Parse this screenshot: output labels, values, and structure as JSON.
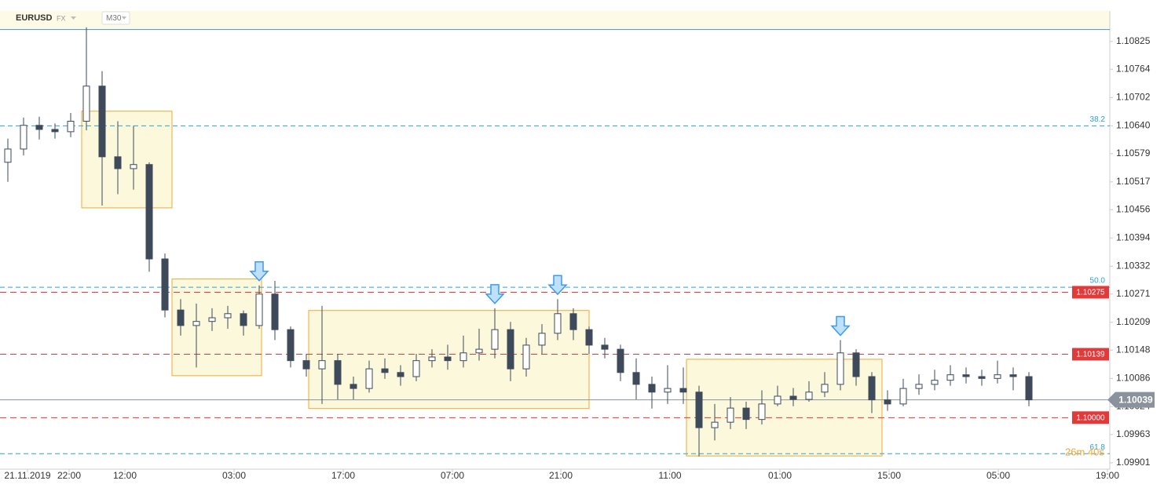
{
  "chart_data": {
    "type": "candlestick",
    "title": "EURUSD",
    "market": "FX",
    "interval": "M30",
    "countdown": "26m 40s",
    "up_color": "#ffffff",
    "down_color": "#3e4a5a",
    "wick_color": "#3e4a5a",
    "ylim": [
      1.09887,
      1.1089
    ],
    "xlim": [
      -0.5,
      70.15
    ],
    "yticks": [
      1.10825,
      1.10764,
      1.10702,
      {
        "value": 1.1064,
        "label": "1.10640"
      },
      1.10579,
      1.10517,
      1.10456,
      1.10394,
      1.10332,
      1.10271,
      1.10209,
      1.10148,
      1.10086,
      1.10024,
      1.09963,
      1.09901
    ],
    "xticks": [
      {
        "value": 1.25,
        "label": "21.11.2019"
      },
      {
        "value": 3.9,
        "label": "22:00"
      },
      {
        "value": 7.45,
        "label": "12:00"
      },
      {
        "value": 14.4,
        "label": "03:00"
      },
      {
        "value": 21.35,
        "label": "17:00"
      },
      {
        "value": 28.3,
        "label": "07:00"
      },
      {
        "value": 35.2,
        "label": "21:00"
      },
      {
        "value": 42.15,
        "label": "11:00"
      },
      {
        "value": 49.15,
        "label": "01:00"
      },
      {
        "value": 56.1,
        "label": "15:00"
      },
      {
        "value": 63.05,
        "label": "05:00"
      },
      {
        "value": 70.0,
        "label": "19:00"
      }
    ],
    "open": [
      1.1056,
      1.10589,
      1.10641,
      1.10632,
      1.10627,
      1.1065,
      1.10727,
      1.10572,
      1.10546,
      1.10555,
      1.10348,
      1.10236,
      1.10202,
      1.10211,
      1.10219,
      1.10228,
      1.10202,
      1.10271,
      1.10193,
      1.10125,
      1.10107,
      1.10125,
      1.10073,
      1.10064,
      1.10107,
      1.10099,
      1.1009,
      1.10125,
      1.10133,
      1.10125,
      1.10142,
      1.1015,
      1.10193,
      1.10107,
      1.10159,
      1.10185,
      1.10228,
      1.10193,
      1.10159,
      1.1015,
      1.10099,
      1.10073,
      1.10056,
      1.10064,
      1.10056,
      1.09978,
      1.0999,
      1.10021,
      1.09996,
      1.1003,
      1.10047,
      1.1004,
      1.10056,
      1.10073,
      1.10142,
      1.1009,
      1.10039,
      1.1003,
      1.10064,
      1.10073,
      1.10082,
      1.10094,
      1.1009,
      1.10086,
      1.10094,
      1.1009
    ],
    "high": [
      1.10612,
      1.10658,
      1.1066,
      1.10645,
      1.10668,
      1.10856,
      1.1076,
      1.1065,
      1.1064,
      1.1056,
      1.1036,
      1.1026,
      1.1025,
      1.1024,
      1.10245,
      1.10235,
      1.1029,
      1.103,
      1.102,
      1.1014,
      1.10245,
      1.1014,
      1.1009,
      1.10125,
      1.1013,
      1.10115,
      1.1014,
      1.1015,
      1.1016,
      1.1018,
      1.10195,
      1.1024,
      1.1021,
      1.10175,
      1.10205,
      1.1026,
      1.1024,
      1.102,
      1.10175,
      1.1016,
      1.1013,
      1.1009,
      1.10115,
      1.1011,
      1.1007,
      1.1003,
      1.10045,
      1.10035,
      1.1006,
      1.1007,
      1.10065,
      1.1008,
      1.101,
      1.1017,
      1.1015,
      1.101,
      1.1006,
      1.10085,
      1.10095,
      1.10105,
      1.10115,
      1.1011,
      1.10105,
      1.10125,
      1.1011,
      1.101
    ],
    "low": [
      1.10517,
      1.10575,
      1.1061,
      1.10612,
      1.10615,
      1.1063,
      1.10465,
      1.1049,
      1.105,
      1.1032,
      1.1022,
      1.1018,
      1.1011,
      1.1019,
      1.10195,
      1.1018,
      1.10195,
      1.1017,
      1.1011,
      1.1009,
      1.1003,
      1.1004,
      1.1004,
      1.10055,
      1.10085,
      1.1007,
      1.1008,
      1.1011,
      1.10105,
      1.1011,
      1.10125,
      1.1013,
      1.1008,
      1.1009,
      1.1014,
      1.1017,
      1.1017,
      1.1014,
      1.1013,
      1.1008,
      1.1004,
      1.1002,
      1.1003,
      1.1003,
      1.09915,
      1.0995,
      1.09975,
      1.09975,
      1.09985,
      1.10025,
      1.10025,
      1.10035,
      1.10045,
      1.1006,
      1.1007,
      1.1001,
      1.10015,
      1.10025,
      1.1005,
      1.1006,
      1.1007,
      1.10075,
      1.1007,
      1.10075,
      1.1006,
      1.10025
    ],
    "close": [
      1.10589,
      1.10641,
      1.10632,
      1.10627,
      1.1065,
      1.10727,
      1.10572,
      1.10546,
      1.10555,
      1.10348,
      1.10236,
      1.10202,
      1.10211,
      1.10219,
      1.10228,
      1.10202,
      1.10271,
      1.10193,
      1.10125,
      1.10107,
      1.10125,
      1.10073,
      1.10064,
      1.10107,
      1.10099,
      1.1009,
      1.10125,
      1.10133,
      1.10125,
      1.10142,
      1.1015,
      1.10193,
      1.10107,
      1.10159,
      1.10185,
      1.10228,
      1.10193,
      1.10159,
      1.1015,
      1.10099,
      1.10073,
      1.10056,
      1.10064,
      1.10056,
      1.09978,
      1.0999,
      1.10021,
      1.09996,
      1.1003,
      1.10047,
      1.1004,
      1.10056,
      1.10073,
      1.10142,
      1.1009,
      1.10039,
      1.1003,
      1.10064,
      1.10073,
      1.10082,
      1.10094,
      1.1009,
      1.10086,
      1.10094,
      1.1009,
      1.10039
    ],
    "zones": [
      {
        "from": 4.7,
        "to": 10.45,
        "high": 1.10672,
        "low": 1.1046
      },
      {
        "from": 10.45,
        "to": 16.15,
        "high": 1.10304,
        "low": 1.10092
      },
      {
        "from": 19.15,
        "to": 37.0,
        "high": 1.10235,
        "low": 1.1002
      },
      {
        "from": 43.2,
        "to": 55.65,
        "high": 1.10128,
        "low": 1.09916
      }
    ],
    "zone_color": "#fbf7d6",
    "zone_border": "#f0a830",
    "signals": [
      16,
      31,
      35,
      53
    ],
    "signal_color": "#3d9be9",
    "top_line": 1.10851,
    "fib_levels": [
      {
        "value": 1.1064,
        "label": "38.2"
      },
      {
        "value": 1.10286,
        "label": "50.0"
      },
      {
        "value": 1.09921,
        "label": "61.8"
      }
    ],
    "fib_color": "#2aa3d6",
    "levels": [
      {
        "value": 1.10275
      },
      {
        "value": 1.10139
      },
      {
        "value": 1.1,
        "label": "1.10000"
      }
    ],
    "level_color": "#e03a3a",
    "current_price": 1.10039,
    "current_color": "#8a939c"
  }
}
